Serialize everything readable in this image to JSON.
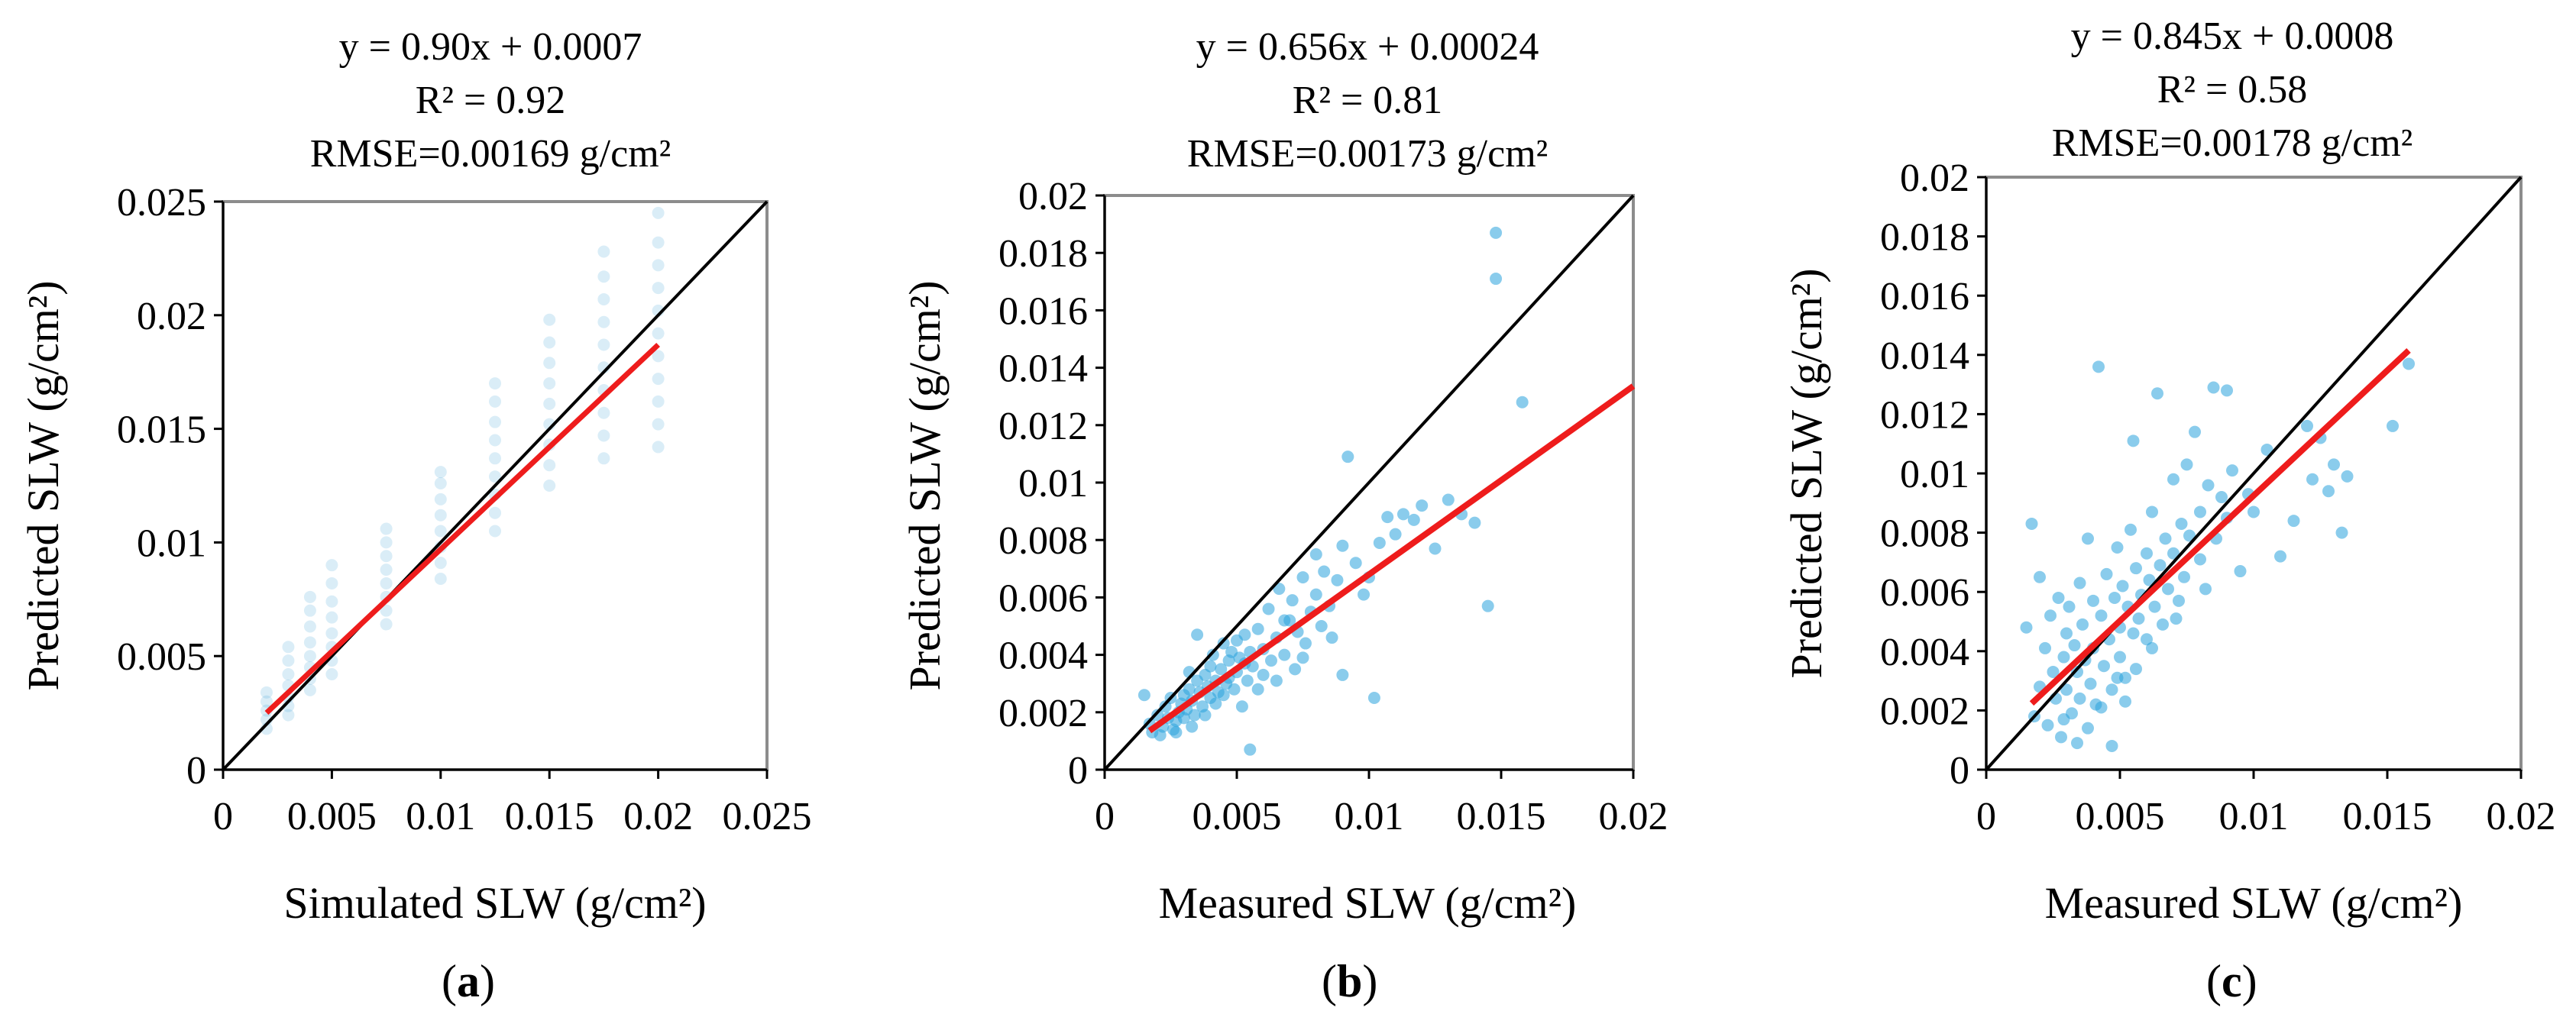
{
  "chart_data": [
    {
      "type": "scatter",
      "panel_label": "a",
      "title_lines": [
        "y = 0.90x + 0.0007",
        "R² = 0.92",
        "RMSE=0.00169 g/cm²"
      ],
      "xlabel": "Simulated SLW (g/cm²)",
      "ylabel": "Predicted SLW (g/cm²)",
      "xlim": [
        0,
        0.025
      ],
      "ylim": [
        0,
        0.025
      ],
      "xticks": [
        0,
        0.005,
        0.01,
        0.015,
        0.02,
        0.025
      ],
      "xtick_labels": [
        "0",
        "0.005",
        "0.01",
        "0.015",
        "0.02",
        "0.025"
      ],
      "yticks": [
        0,
        0.005,
        0.01,
        0.015,
        0.02,
        0.025
      ],
      "ytick_labels": [
        "0",
        "0.005",
        "0.01",
        "0.015",
        "0.02",
        "0.025"
      ],
      "fit": {
        "slope": 0.9,
        "intercept": 0.0007,
        "x_range": [
          0.002,
          0.02
        ]
      },
      "reference_line": "1:1",
      "point_color": "#1a8fd0",
      "fit_color": "#ee1c1c",
      "points": [
        [
          0.002,
          0.0018
        ],
        [
          0.002,
          0.0022
        ],
        [
          0.002,
          0.0026
        ],
        [
          0.002,
          0.003
        ],
        [
          0.002,
          0.0034
        ],
        [
          0.003,
          0.0024
        ],
        [
          0.003,
          0.0028
        ],
        [
          0.003,
          0.0032
        ],
        [
          0.003,
          0.0037
        ],
        [
          0.003,
          0.0042
        ],
        [
          0.003,
          0.0048
        ],
        [
          0.003,
          0.0054
        ],
        [
          0.004,
          0.0035
        ],
        [
          0.004,
          0.004
        ],
        [
          0.004,
          0.0045
        ],
        [
          0.004,
          0.005
        ],
        [
          0.004,
          0.0056
        ],
        [
          0.004,
          0.0063
        ],
        [
          0.004,
          0.007
        ],
        [
          0.004,
          0.0076
        ],
        [
          0.005,
          0.0042
        ],
        [
          0.005,
          0.0048
        ],
        [
          0.005,
          0.0054
        ],
        [
          0.005,
          0.006
        ],
        [
          0.005,
          0.0067
        ],
        [
          0.005,
          0.0074
        ],
        [
          0.005,
          0.0082
        ],
        [
          0.005,
          0.009
        ],
        [
          0.0075,
          0.0064
        ],
        [
          0.0075,
          0.007
        ],
        [
          0.0075,
          0.0076
        ],
        [
          0.0075,
          0.0082
        ],
        [
          0.0075,
          0.0088
        ],
        [
          0.0075,
          0.0094
        ],
        [
          0.0075,
          0.01
        ],
        [
          0.0075,
          0.0106
        ],
        [
          0.01,
          0.0084
        ],
        [
          0.01,
          0.0091
        ],
        [
          0.01,
          0.0098
        ],
        [
          0.01,
          0.0105
        ],
        [
          0.01,
          0.0112
        ],
        [
          0.01,
          0.0119
        ],
        [
          0.01,
          0.0126
        ],
        [
          0.01,
          0.0131
        ],
        [
          0.0125,
          0.0105
        ],
        [
          0.0125,
          0.0113
        ],
        [
          0.0125,
          0.0121
        ],
        [
          0.0125,
          0.0129
        ],
        [
          0.0125,
          0.0137
        ],
        [
          0.0125,
          0.0145
        ],
        [
          0.0125,
          0.0153
        ],
        [
          0.0125,
          0.0162
        ],
        [
          0.0125,
          0.017
        ],
        [
          0.015,
          0.0125
        ],
        [
          0.015,
          0.0134
        ],
        [
          0.015,
          0.0143
        ],
        [
          0.015,
          0.0152
        ],
        [
          0.015,
          0.0161
        ],
        [
          0.015,
          0.017
        ],
        [
          0.015,
          0.0179
        ],
        [
          0.015,
          0.0188
        ],
        [
          0.015,
          0.0198
        ],
        [
          0.0175,
          0.0137
        ],
        [
          0.0175,
          0.0147
        ],
        [
          0.0175,
          0.0157
        ],
        [
          0.0175,
          0.0167
        ],
        [
          0.0175,
          0.0177
        ],
        [
          0.0175,
          0.0187
        ],
        [
          0.0175,
          0.0197
        ],
        [
          0.0175,
          0.0207
        ],
        [
          0.0175,
          0.0217
        ],
        [
          0.0175,
          0.0228
        ],
        [
          0.02,
          0.0142
        ],
        [
          0.02,
          0.0152
        ],
        [
          0.02,
          0.0162
        ],
        [
          0.02,
          0.0172
        ],
        [
          0.02,
          0.0182
        ],
        [
          0.02,
          0.0192
        ],
        [
          0.02,
          0.0202
        ],
        [
          0.02,
          0.0212
        ],
        [
          0.02,
          0.0222
        ],
        [
          0.02,
          0.0232
        ],
        [
          0.02,
          0.0245
        ]
      ]
    },
    {
      "type": "scatter",
      "panel_label": "b",
      "title_lines": [
        "y = 0.656x + 0.00024",
        "R² = 0.81",
        "RMSE=0.00173 g/cm²"
      ],
      "xlabel": "Measured SLW (g/cm²)",
      "ylabel": "Predicted SLW (g/cm²)",
      "xlim": [
        0,
        0.02
      ],
      "ylim": [
        0,
        0.02
      ],
      "xticks": [
        0,
        0.005,
        0.01,
        0.015,
        0.02
      ],
      "xtick_labels": [
        "0",
        "0.005",
        "0.01",
        "0.015",
        "0.02"
      ],
      "yticks": [
        0,
        0.002,
        0.004,
        0.006,
        0.008,
        0.01,
        0.012,
        0.014,
        0.016,
        0.018,
        0.02
      ],
      "ytick_labels": [
        "0",
        "0.002",
        "0.004",
        "0.006",
        "0.008",
        "0.01",
        "0.012",
        "0.014",
        "0.016",
        "0.018",
        "0.02"
      ],
      "fit": {
        "slope": 0.656,
        "intercept": 0.00024,
        "x_range": [
          0.0017,
          0.02
        ]
      },
      "reference_line": "1:1",
      "point_color": "#2aa3dc",
      "fit_color": "#ee1c1c",
      "points": [
        [
          0.0015,
          0.0026
        ],
        [
          0.0017,
          0.0016
        ],
        [
          0.0018,
          0.0013
        ],
        [
          0.002,
          0.0019
        ],
        [
          0.0021,
          0.0012
        ],
        [
          0.0022,
          0.0015
        ],
        [
          0.0023,
          0.0022
        ],
        [
          0.0024,
          0.0018
        ],
        [
          0.0025,
          0.0025
        ],
        [
          0.0026,
          0.0014
        ],
        [
          0.0027,
          0.0017
        ],
        [
          0.0028,
          0.002
        ],
        [
          0.0029,
          0.0023
        ],
        [
          0.003,
          0.0026
        ],
        [
          0.003,
          0.0018
        ],
        [
          0.0031,
          0.0021
        ],
        [
          0.0032,
          0.0028
        ],
        [
          0.0033,
          0.0024
        ],
        [
          0.0034,
          0.0019
        ],
        [
          0.0035,
          0.0031
        ],
        [
          0.0035,
          0.0047
        ],
        [
          0.0036,
          0.0027
        ],
        [
          0.0037,
          0.0022
        ],
        [
          0.0038,
          0.0033
        ],
        [
          0.0039,
          0.0029
        ],
        [
          0.004,
          0.0036
        ],
        [
          0.004,
          0.0025
        ],
        [
          0.0041,
          0.004
        ],
        [
          0.0042,
          0.0031
        ],
        [
          0.0043,
          0.0027
        ],
        [
          0.0044,
          0.0035
        ],
        [
          0.0045,
          0.0044
        ],
        [
          0.0046,
          0.003
        ],
        [
          0.0047,
          0.0038
        ],
        [
          0.0048,
          0.0041
        ],
        [
          0.0049,
          0.0028
        ],
        [
          0.005,
          0.0045
        ],
        [
          0.005,
          0.0034
        ],
        [
          0.0051,
          0.0039
        ],
        [
          0.0052,
          0.0022
        ],
        [
          0.0053,
          0.0047
        ],
        [
          0.0054,
          0.0031
        ],
        [
          0.0055,
          0.0041
        ],
        [
          0.0055,
          0.0007
        ],
        [
          0.0056,
          0.0036
        ],
        [
          0.0058,
          0.0049
        ],
        [
          0.006,
          0.0042
        ],
        [
          0.006,
          0.0033
        ],
        [
          0.0062,
          0.0056
        ],
        [
          0.0063,
          0.0038
        ],
        [
          0.0065,
          0.0046
        ],
        [
          0.0066,
          0.0063
        ],
        [
          0.0068,
          0.004
        ],
        [
          0.007,
          0.0052
        ],
        [
          0.0071,
          0.0059
        ],
        [
          0.0072,
          0.0035
        ],
        [
          0.0073,
          0.0048
        ],
        [
          0.0075,
          0.0067
        ],
        [
          0.0076,
          0.0044
        ],
        [
          0.0078,
          0.0055
        ],
        [
          0.008,
          0.0075
        ],
        [
          0.008,
          0.0061
        ],
        [
          0.0082,
          0.005
        ],
        [
          0.0083,
          0.0069
        ],
        [
          0.0085,
          0.0057
        ],
        [
          0.0086,
          0.0046
        ],
        [
          0.0088,
          0.0066
        ],
        [
          0.009,
          0.0078
        ],
        [
          0.009,
          0.0033
        ],
        [
          0.0092,
          0.0109
        ],
        [
          0.0095,
          0.0072
        ],
        [
          0.0098,
          0.0061
        ],
        [
          0.01,
          0.0067
        ],
        [
          0.0102,
          0.0025
        ],
        [
          0.0104,
          0.0079
        ],
        [
          0.0107,
          0.0088
        ],
        [
          0.011,
          0.0082
        ],
        [
          0.0113,
          0.0089
        ],
        [
          0.0117,
          0.0087
        ],
        [
          0.012,
          0.0092
        ],
        [
          0.0125,
          0.0077
        ],
        [
          0.013,
          0.0094
        ],
        [
          0.0135,
          0.0089
        ],
        [
          0.014,
          0.0086
        ],
        [
          0.0145,
          0.0057
        ],
        [
          0.0148,
          0.0187
        ],
        [
          0.0148,
          0.0171
        ],
        [
          0.0158,
          0.0128
        ],
        [
          0.0065,
          0.0031
        ],
        [
          0.0045,
          0.0026
        ],
        [
          0.0038,
          0.0019
        ],
        [
          0.0033,
          0.0015
        ],
        [
          0.0027,
          0.0013
        ],
        [
          0.0058,
          0.0028
        ],
        [
          0.0075,
          0.0039
        ],
        [
          0.0032,
          0.0034
        ],
        [
          0.0042,
          0.0023
        ],
        [
          0.0047,
          0.0032
        ],
        [
          0.0053,
          0.0037
        ],
        [
          0.0068,
          0.0052
        ]
      ]
    },
    {
      "type": "scatter",
      "panel_label": "c",
      "title_lines": [
        "y = 0.845x + 0.0008",
        "R² = 0.58",
        "RMSE=0.00178 g/cm²"
      ],
      "xlabel": "Measured SLW (g/cm²)",
      "ylabel": "Predicted SLW (g/cm²)",
      "xlim": [
        0,
        0.02
      ],
      "ylim": [
        0,
        0.02
      ],
      "xticks": [
        0,
        0.005,
        0.01,
        0.015,
        0.02
      ],
      "xtick_labels": [
        "0",
        "0.005",
        "0.01",
        "0.015",
        "0.02"
      ],
      "yticks": [
        0,
        0.002,
        0.004,
        0.006,
        0.008,
        0.01,
        0.012,
        0.014,
        0.016,
        0.018,
        0.02
      ],
      "ytick_labels": [
        "0",
        "0.002",
        "0.004",
        "0.006",
        "0.008",
        "0.01",
        "0.012",
        "0.014",
        "0.016",
        "0.018",
        "0.02"
      ],
      "fit": {
        "slope": 0.845,
        "intercept": 0.0008,
        "x_range": [
          0.0017,
          0.0158
        ]
      },
      "reference_line": "1:1",
      "point_color": "#2aa3dc",
      "fit_color": "#ee1c1c",
      "points": [
        [
          0.0015,
          0.0048
        ],
        [
          0.0017,
          0.0083
        ],
        [
          0.0018,
          0.0018
        ],
        [
          0.002,
          0.0065
        ],
        [
          0.002,
          0.0028
        ],
        [
          0.0022,
          0.0041
        ],
        [
          0.0023,
          0.0015
        ],
        [
          0.0024,
          0.0052
        ],
        [
          0.0025,
          0.0033
        ],
        [
          0.0026,
          0.0024
        ],
        [
          0.0027,
          0.0058
        ],
        [
          0.0028,
          0.0011
        ],
        [
          0.0029,
          0.0038
        ],
        [
          0.003,
          0.0046
        ],
        [
          0.003,
          0.0027
        ],
        [
          0.0031,
          0.0055
        ],
        [
          0.0032,
          0.0019
        ],
        [
          0.0033,
          0.0042
        ],
        [
          0.0034,
          0.0033
        ],
        [
          0.0035,
          0.0063
        ],
        [
          0.0035,
          0.0024
        ],
        [
          0.0036,
          0.0049
        ],
        [
          0.0037,
          0.0037
        ],
        [
          0.0038,
          0.0078
        ],
        [
          0.0039,
          0.0029
        ],
        [
          0.004,
          0.0057
        ],
        [
          0.004,
          0.0041
        ],
        [
          0.0041,
          0.0022
        ],
        [
          0.0042,
          0.0136
        ],
        [
          0.0043,
          0.0052
        ],
        [
          0.0044,
          0.0035
        ],
        [
          0.0045,
          0.0066
        ],
        [
          0.0046,
          0.0044
        ],
        [
          0.0047,
          0.0027
        ],
        [
          0.0048,
          0.0058
        ],
        [
          0.0049,
          0.0075
        ],
        [
          0.005,
          0.0048
        ],
        [
          0.005,
          0.0038
        ],
        [
          0.0051,
          0.0062
        ],
        [
          0.0052,
          0.0031
        ],
        [
          0.0053,
          0.0055
        ],
        [
          0.0054,
          0.0081
        ],
        [
          0.0055,
          0.0046
        ],
        [
          0.0055,
          0.0111
        ],
        [
          0.0056,
          0.0068
        ],
        [
          0.0057,
          0.0051
        ],
        [
          0.0058,
          0.0059
        ],
        [
          0.006,
          0.0073
        ],
        [
          0.006,
          0.0044
        ],
        [
          0.0061,
          0.0064
        ],
        [
          0.0062,
          0.0087
        ],
        [
          0.0063,
          0.0055
        ],
        [
          0.0064,
          0.0127
        ],
        [
          0.0065,
          0.0069
        ],
        [
          0.0066,
          0.0049
        ],
        [
          0.0067,
          0.0078
        ],
        [
          0.0068,
          0.0061
        ],
        [
          0.007,
          0.0098
        ],
        [
          0.007,
          0.0073
        ],
        [
          0.0072,
          0.0057
        ],
        [
          0.0073,
          0.0083
        ],
        [
          0.0074,
          0.0065
        ],
        [
          0.0075,
          0.0103
        ],
        [
          0.0076,
          0.0079
        ],
        [
          0.0078,
          0.0114
        ],
        [
          0.008,
          0.0071
        ],
        [
          0.008,
          0.0087
        ],
        [
          0.0082,
          0.0061
        ],
        [
          0.0083,
          0.0096
        ],
        [
          0.0085,
          0.0129
        ],
        [
          0.0086,
          0.0078
        ],
        [
          0.0088,
          0.0092
        ],
        [
          0.009,
          0.0128
        ],
        [
          0.009,
          0.0085
        ],
        [
          0.0092,
          0.0101
        ],
        [
          0.0095,
          0.0067
        ],
        [
          0.0098,
          0.0093
        ],
        [
          0.01,
          0.0087
        ],
        [
          0.0105,
          0.0108
        ],
        [
          0.011,
          0.0072
        ],
        [
          0.0115,
          0.0084
        ],
        [
          0.012,
          0.0116
        ],
        [
          0.0122,
          0.0098
        ],
        [
          0.0125,
          0.0112
        ],
        [
          0.0128,
          0.0094
        ],
        [
          0.013,
          0.0103
        ],
        [
          0.0133,
          0.008
        ],
        [
          0.0135,
          0.0099
        ],
        [
          0.0152,
          0.0116
        ],
        [
          0.0158,
          0.0137
        ],
        [
          0.0029,
          0.0017
        ],
        [
          0.0034,
          0.0009
        ],
        [
          0.0038,
          0.0014
        ],
        [
          0.0043,
          0.0021
        ],
        [
          0.0047,
          0.0008
        ],
        [
          0.0049,
          0.0031
        ],
        [
          0.0052,
          0.0023
        ],
        [
          0.0056,
          0.0034
        ],
        [
          0.0062,
          0.0041
        ],
        [
          0.0071,
          0.0051
        ]
      ]
    }
  ]
}
